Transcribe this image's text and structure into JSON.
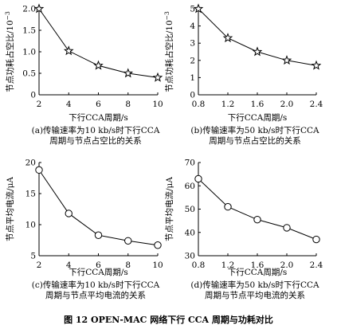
{
  "figure": {
    "title": "图 12   OPEN-MAC 网络下行 CCA 周期与功耗对比"
  },
  "chart_data": [
    {
      "id": "a",
      "type": "line",
      "marker": "star",
      "x": [
        2,
        4,
        6,
        8,
        10
      ],
      "values": [
        2.0,
        1.02,
        0.68,
        0.5,
        0.4
      ],
      "xlim": [
        2,
        10
      ],
      "ylim": [
        0,
        2.0
      ],
      "xticks": [
        "2",
        "4",
        "6",
        "8",
        "10"
      ],
      "yticks": [
        "0",
        "0.5",
        "1.0",
        "1.5",
        "2.0"
      ],
      "xlabel": "下行CCA周期/s",
      "ylabel": "节点功耗占空比/10",
      "ylabel_exp": "−3",
      "caption_line1": "(a)传输速率为10 kb/s时下行CCA",
      "caption_line2": "周期与节点占空比的关系"
    },
    {
      "id": "b",
      "type": "line",
      "marker": "star",
      "x": [
        0.8,
        1.2,
        1.6,
        2.0,
        2.4
      ],
      "values": [
        5.0,
        3.3,
        2.5,
        2.0,
        1.7
      ],
      "xlim": [
        0.8,
        2.4
      ],
      "ylim": [
        0,
        5
      ],
      "xticks": [
        "0.8",
        "1.2",
        "1.6",
        "2.0",
        "2.4"
      ],
      "yticks": [
        "0",
        "1",
        "2",
        "3",
        "4",
        "5"
      ],
      "xlabel": "下行CCA周期/s",
      "ylabel": "节点功耗占空比/10",
      "ylabel_exp": "−3",
      "caption_line1": "(b)传输速率为50 kb/s时下行CCA",
      "caption_line2": "周期与节点占空比的关系"
    },
    {
      "id": "c",
      "type": "line",
      "marker": "circle",
      "x": [
        2,
        4,
        6,
        8,
        10
      ],
      "values": [
        18.8,
        11.8,
        8.3,
        7.4,
        6.7
      ],
      "xlim": [
        2,
        10
      ],
      "ylim": [
        5,
        20
      ],
      "xticks": [
        "2",
        "4",
        "6",
        "8",
        "10"
      ],
      "yticks": [
        "5",
        "10",
        "15",
        "20"
      ],
      "xlabel": "下行CCA周期/s",
      "ylabel": "节点平均电流/μA",
      "ylabel_exp": "",
      "caption_line1": "(c)传输速率为10 kb/s时下行CCA",
      "caption_line2": "周期与节点平均电流的关系"
    },
    {
      "id": "d",
      "type": "line",
      "marker": "circle",
      "x": [
        0.8,
        1.2,
        1.6,
        2.0,
        2.4
      ],
      "values": [
        63,
        51,
        45.5,
        42,
        37
      ],
      "xlim": [
        0.8,
        2.4
      ],
      "ylim": [
        30,
        70
      ],
      "xticks": [
        "0.8",
        "1.2",
        "1.6",
        "2.0",
        "2.4"
      ],
      "yticks": [
        "30",
        "40",
        "50",
        "60",
        "70"
      ],
      "xlabel": "下行CCA周期/s",
      "ylabel": "节点平均电流/μA",
      "ylabel_exp": "",
      "caption_line1": "(d)传输速率为50 kb/s时下行CCA",
      "caption_line2": "周期与节点平均电流的关系"
    }
  ]
}
